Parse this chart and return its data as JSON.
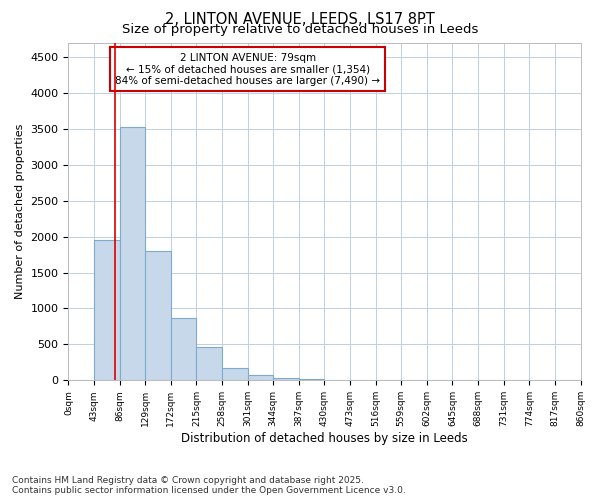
{
  "title1": "2, LINTON AVENUE, LEEDS, LS17 8PT",
  "title2": "Size of property relative to detached houses in Leeds",
  "xlabel": "Distribution of detached houses by size in Leeds",
  "ylabel": "Number of detached properties",
  "bar_edges": [
    0,
    43,
    86,
    129,
    172,
    215,
    258,
    301,
    344,
    387,
    430,
    473,
    516,
    559,
    602,
    645,
    688,
    731,
    774,
    817,
    860
  ],
  "bar_heights": [
    5,
    1950,
    3530,
    1800,
    870,
    460,
    175,
    80,
    30,
    20,
    0,
    0,
    0,
    0,
    0,
    0,
    0,
    0,
    0,
    0
  ],
  "bar_color": "#c8d8eb",
  "bar_edge_color": "#7eaacc",
  "property_size": 79,
  "red_line_color": "#dd0000",
  "annotation_text": "2 LINTON AVENUE: 79sqm\n← 15% of detached houses are smaller (1,354)\n84% of semi-detached houses are larger (7,490) →",
  "annotation_box_facecolor": "#ffffff",
  "annotation_box_edgecolor": "#cc0000",
  "ylim": [
    0,
    4700
  ],
  "yticks": [
    0,
    500,
    1000,
    1500,
    2000,
    2500,
    3000,
    3500,
    4000,
    4500
  ],
  "footer1": "Contains HM Land Registry data © Crown copyright and database right 2025.",
  "footer2": "Contains public sector information licensed under the Open Government Licence v3.0.",
  "bg_color": "#ffffff",
  "plot_bg_color": "#ffffff",
  "grid_color": "#c0d0e0",
  "title1_fontsize": 10.5,
  "title2_fontsize": 9.5,
  "xlabel_fontsize": 8.5,
  "ylabel_fontsize": 8,
  "ytick_fontsize": 8,
  "xtick_fontsize": 6.5,
  "annotation_fontsize": 7.5,
  "footer_fontsize": 6.5
}
